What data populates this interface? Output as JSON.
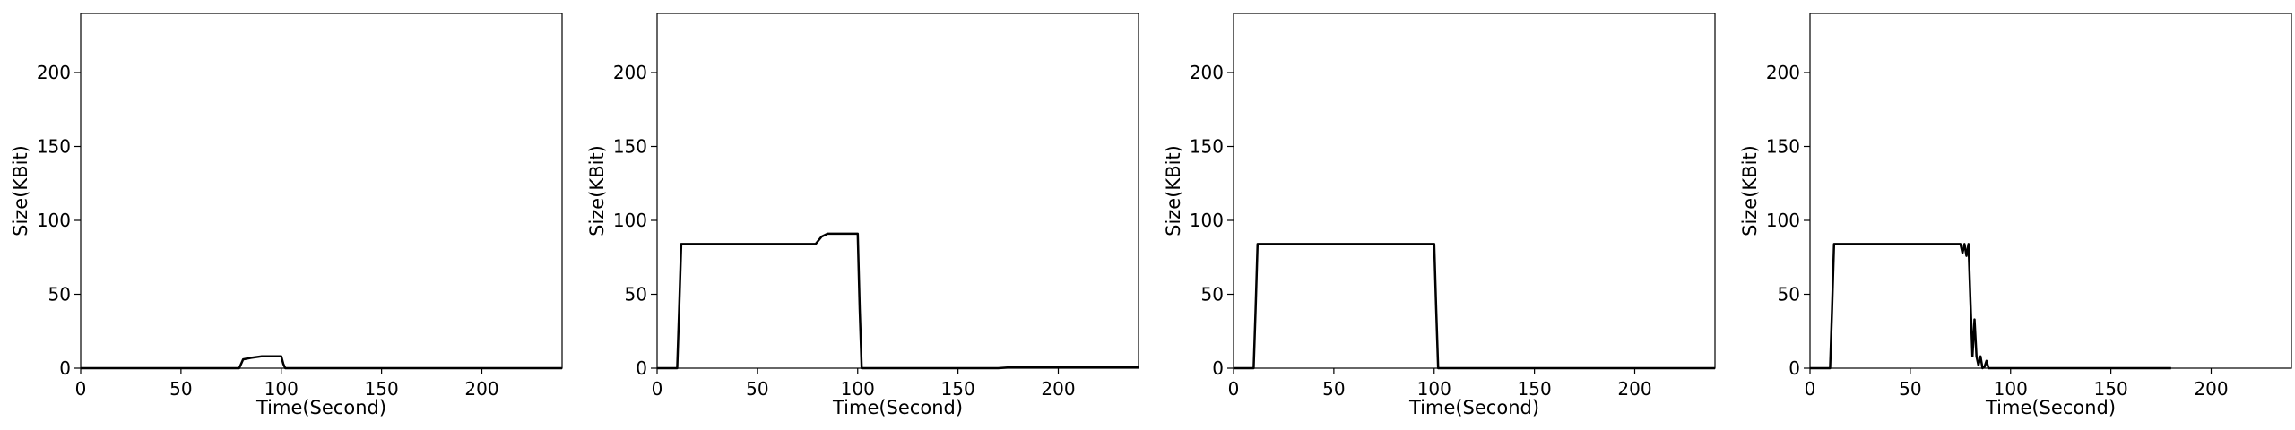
{
  "chart_data": [
    {
      "type": "line",
      "xlabel": "Time(Second)",
      "ylabel": "Size(KBit)",
      "xlim": [
        0,
        240
      ],
      "ylim": [
        0,
        240
      ],
      "xticks": [
        0,
        50,
        100,
        150,
        200
      ],
      "yticks": [
        0,
        50,
        100,
        150,
        200
      ],
      "series": [
        {
          "x": [
            0,
            10,
            20,
            30,
            40,
            50,
            60,
            70,
            79,
            80,
            81,
            85,
            90,
            95,
            100,
            101,
            102,
            110,
            120,
            130,
            140,
            150,
            160,
            170,
            180,
            190,
            200,
            210,
            220,
            230,
            240
          ],
          "y": [
            0,
            0,
            0,
            0,
            0,
            0,
            0,
            0,
            0,
            3,
            6,
            7,
            8,
            8,
            8,
            3,
            0,
            0,
            0,
            0,
            0,
            0,
            0,
            0,
            0,
            0,
            0,
            0,
            0,
            0,
            0
          ]
        }
      ]
    },
    {
      "type": "line",
      "xlabel": "Time(Second)",
      "ylabel": "Size(KBit)",
      "xlim": [
        0,
        240
      ],
      "ylim": [
        0,
        240
      ],
      "xticks": [
        0,
        50,
        100,
        150,
        200
      ],
      "yticks": [
        0,
        50,
        100,
        150,
        200
      ],
      "series": [
        {
          "x": [
            0,
            5,
            10,
            11,
            12,
            20,
            30,
            40,
            50,
            60,
            70,
            79,
            82,
            85,
            90,
            95,
            100,
            101,
            102,
            110,
            120,
            130,
            140,
            150,
            160,
            170,
            180,
            190,
            200,
            210,
            220,
            230,
            240
          ],
          "y": [
            0,
            0,
            0,
            40,
            84,
            84,
            84,
            84,
            84,
            84,
            84,
            84,
            89,
            91,
            91,
            91,
            91,
            40,
            0,
            0,
            0,
            0,
            0,
            0,
            0,
            0,
            1,
            1,
            1,
            1,
            1,
            1,
            1
          ]
        }
      ]
    },
    {
      "type": "line",
      "xlabel": "Time(Second)",
      "ylabel": "Size(KBit)",
      "xlim": [
        0,
        240
      ],
      "ylim": [
        0,
        240
      ],
      "xticks": [
        0,
        50,
        100,
        150,
        200
      ],
      "yticks": [
        0,
        50,
        100,
        150,
        200
      ],
      "series": [
        {
          "x": [
            0,
            5,
            10,
            11,
            12,
            20,
            30,
            40,
            50,
            60,
            70,
            80,
            90,
            100,
            101,
            102,
            110,
            120,
            130,
            140,
            150,
            160,
            170,
            180,
            190,
            200,
            210,
            220,
            230,
            240
          ],
          "y": [
            0,
            0,
            0,
            40,
            84,
            84,
            84,
            84,
            84,
            84,
            84,
            84,
            84,
            84,
            40,
            0,
            0,
            0,
            0,
            0,
            0,
            0,
            0,
            0,
            0,
            0,
            0,
            0,
            0,
            0
          ]
        }
      ]
    },
    {
      "type": "line",
      "xlabel": "Time(Second)",
      "ylabel": "Size(KBit)",
      "xlim": [
        0,
        240
      ],
      "ylim": [
        0,
        240
      ],
      "xticks": [
        0,
        50,
        100,
        150,
        200
      ],
      "yticks": [
        0,
        50,
        100,
        150,
        200
      ],
      "series": [
        {
          "x": [
            0,
            5,
            10,
            11,
            12,
            20,
            30,
            40,
            50,
            60,
            70,
            75,
            76,
            77,
            78,
            79,
            80,
            81,
            82,
            83,
            84,
            85,
            86,
            87,
            88,
            89,
            90,
            95,
            100,
            120,
            140,
            160,
            180
          ],
          "y": [
            0,
            0,
            0,
            40,
            84,
            84,
            84,
            84,
            84,
            84,
            84,
            84,
            78,
            84,
            76,
            84,
            45,
            8,
            33,
            8,
            2,
            8,
            0,
            1,
            5,
            0,
            0,
            0,
            0,
            0,
            0,
            0,
            0
          ]
        }
      ]
    }
  ]
}
